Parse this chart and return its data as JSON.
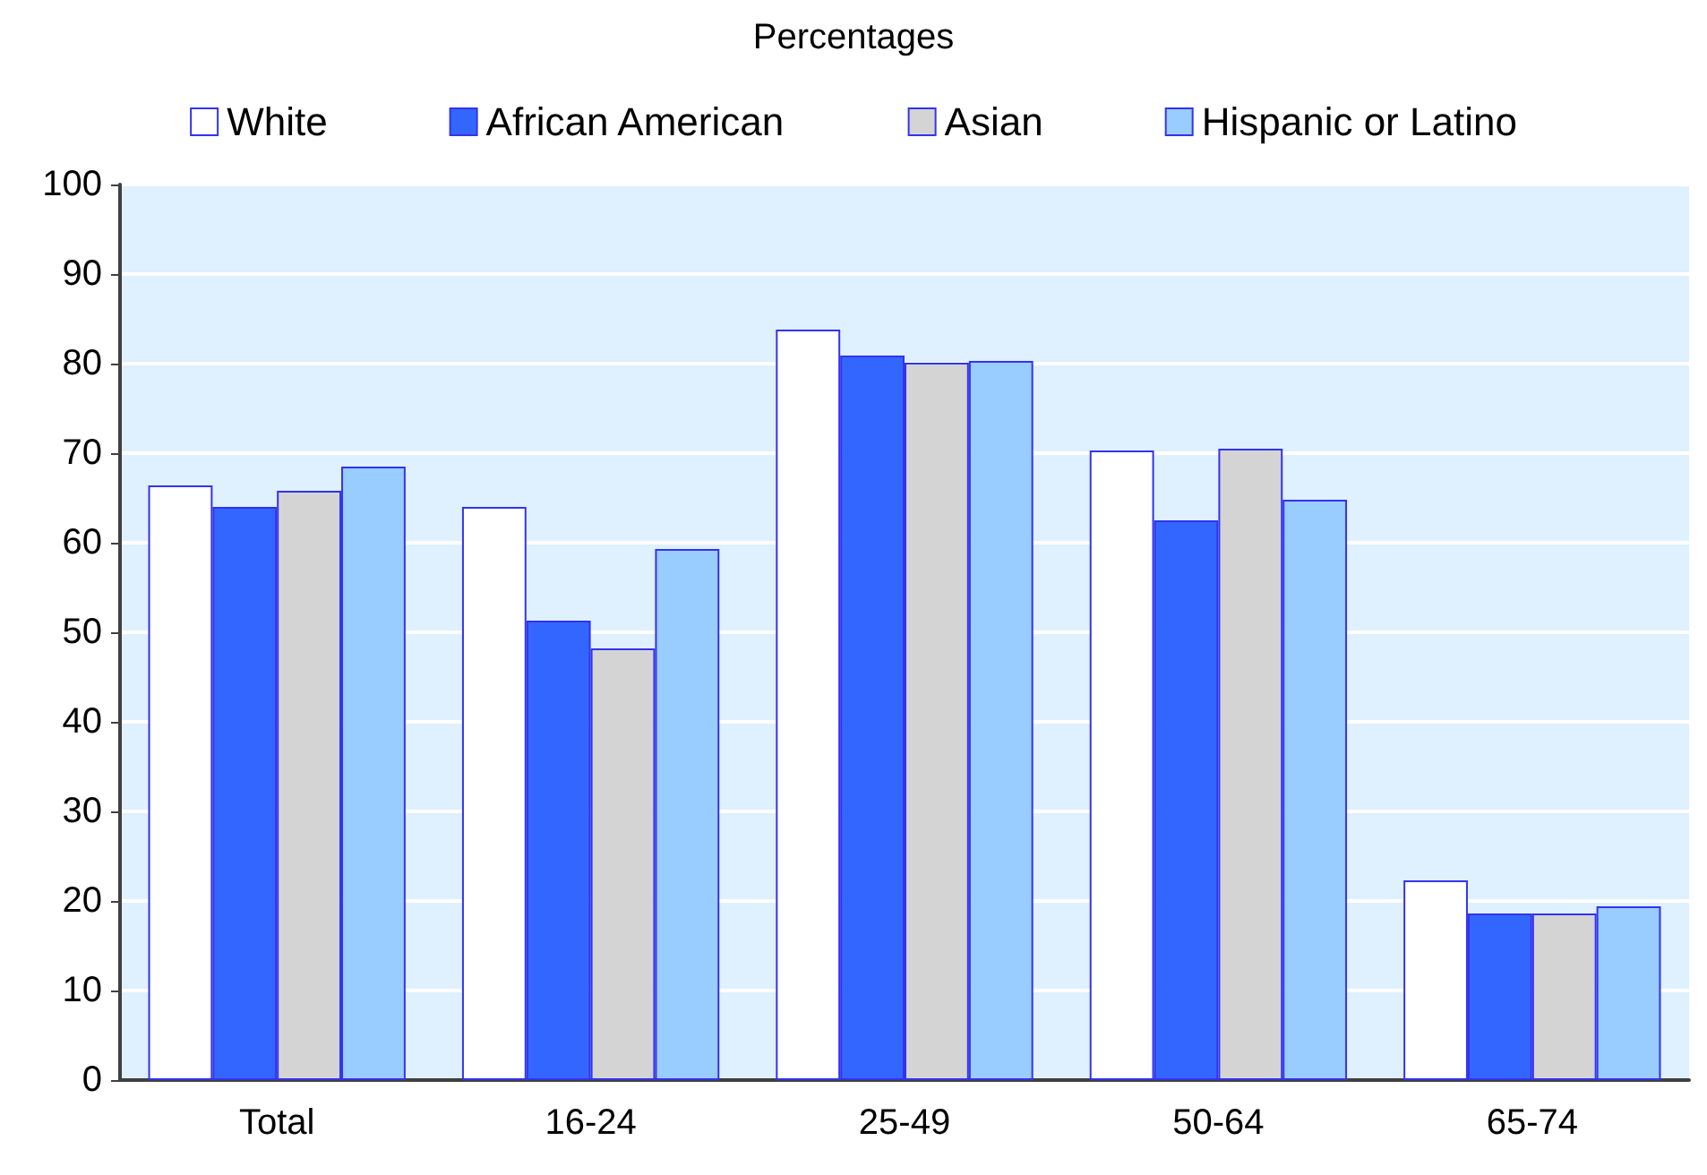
{
  "chart_data": {
    "type": "bar",
    "title": "Percentages",
    "categories": [
      "Total",
      "16-24",
      "25-49",
      "50-64",
      "65-74"
    ],
    "series": [
      {
        "name": "White",
        "color": "#ffffff",
        "values": [
          66.4,
          64.0,
          83.8,
          70.3,
          22.3
        ]
      },
      {
        "name": "African American",
        "color": "#3366ff",
        "values": [
          64.0,
          51.3,
          80.9,
          62.5,
          18.6
        ]
      },
      {
        "name": "Asian",
        "color": "#d4d4d4",
        "values": [
          65.8,
          48.2,
          80.1,
          70.5,
          18.6
        ]
      },
      {
        "name": "Hispanic or Latino",
        "color": "#99ccff",
        "values": [
          68.5,
          59.3,
          80.3,
          64.8,
          19.4
        ]
      }
    ],
    "ylim": [
      0,
      100
    ],
    "yticks": [
      0,
      10,
      20,
      30,
      40,
      50,
      60,
      70,
      80,
      90,
      100
    ],
    "grid": "y",
    "legend": "top"
  }
}
